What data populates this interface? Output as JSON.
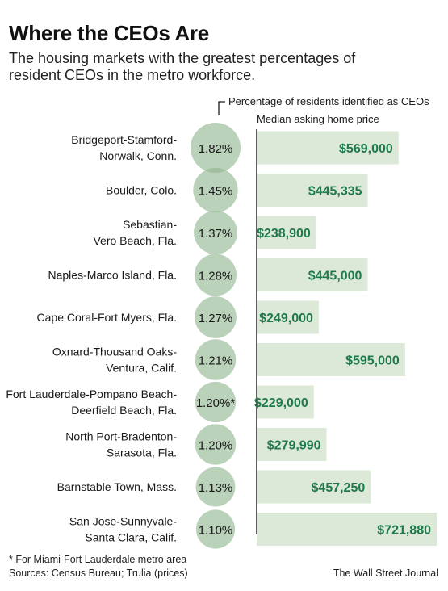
{
  "title": "Where the CEOs Are",
  "subtitle": "The housing markets with the greatest percentages of resident CEOs in the metro workforce.",
  "footnote": "* For Miami-Fort Lauderdale metro area",
  "sources": "Sources: Census Bureau; Trulia (prices)",
  "credit": "The Wall Street Journal",
  "colors": {
    "circle_fill": "#8fb48f",
    "bar_fill": "#dce8d8",
    "price_text": "#1f7a4a"
  },
  "chart_data": {
    "type": "bar",
    "header_pct": "Percentage of residents identified as CEOs",
    "header_price": "Median asking home price",
    "rows": [
      {
        "label": [
          "Bridgeport-Stamford-",
          "Norwalk, Conn."
        ],
        "pct": 1.82,
        "pct_label": "1.82%",
        "price": 569000,
        "price_label": "$569,000"
      },
      {
        "label": [
          "Boulder, Colo."
        ],
        "pct": 1.45,
        "pct_label": "1.45%",
        "price": 445335,
        "price_label": "$445,335"
      },
      {
        "label": [
          "Sebastian-",
          "Vero Beach, Fla."
        ],
        "pct": 1.37,
        "pct_label": "1.37%",
        "price": 238900,
        "price_label": "$238,900"
      },
      {
        "label": [
          "Naples-Marco Island, Fla."
        ],
        "pct": 1.28,
        "pct_label": "1.28%",
        "price": 445000,
        "price_label": "$445,000"
      },
      {
        "label": [
          "Cape Coral-Fort Myers, Fla."
        ],
        "pct": 1.27,
        "pct_label": "1.27%",
        "price": 249000,
        "price_label": "$249,000"
      },
      {
        "label": [
          "Oxnard-Thousand Oaks-",
          "Ventura, Calif."
        ],
        "pct": 1.21,
        "pct_label": "1.21%",
        "price": 595000,
        "price_label": "$595,000"
      },
      {
        "label": [
          "Fort Lauderdale-Pompano Beach-",
          "Deerfield Beach, Fla."
        ],
        "pct": 1.2,
        "pct_label": "1.20%*",
        "price": 229000,
        "price_label": "$229,000"
      },
      {
        "label": [
          "North Port-Bradenton-",
          "Sarasota, Fla."
        ],
        "pct": 1.2,
        "pct_label": "1.20%",
        "price": 279990,
        "price_label": "$279,990"
      },
      {
        "label": [
          "Barnstable Town, Mass."
        ],
        "pct": 1.13,
        "pct_label": "1.13%",
        "price": 457250,
        "price_label": "$457,250"
      },
      {
        "label": [
          "San Jose-Sunnyvale-",
          "Santa Clara, Calif."
        ],
        "pct": 1.1,
        "pct_label": "1.10%",
        "price": 721880,
        "price_label": "$721,880"
      }
    ]
  }
}
